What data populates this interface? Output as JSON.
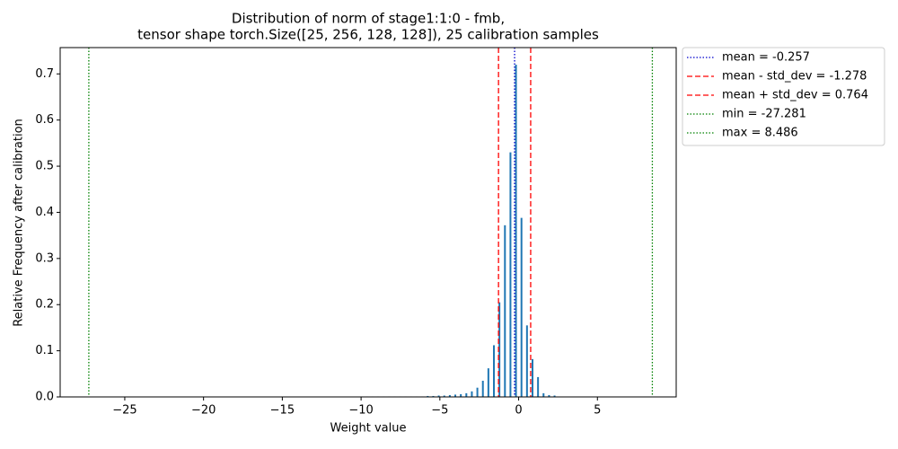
{
  "chart_data": {
    "type": "bar",
    "title": [
      "Distribution of norm of stage1:1:0 - fmb,",
      "tensor shape torch.Size([25, 256, 128, 128]), 25 calibration samples"
    ],
    "x_label": "Weight value",
    "y_label": "Relative Frequency after calibration",
    "color": "#1f77b4",
    "x": [
      -9.97,
      -9.62,
      -9.27,
      -8.92,
      -8.57,
      -8.22,
      -7.87,
      -7.52,
      -7.17,
      -6.82,
      -6.47,
      -6.12,
      -5.77,
      -5.42,
      -5.07,
      -4.72,
      -4.37,
      -4.02,
      -3.67,
      -3.32,
      -2.97,
      -2.62,
      -2.27,
      -1.92,
      -1.57,
      -1.22,
      -0.87,
      -0.52,
      -0.17,
      0.18,
      0.53,
      0.88,
      1.23,
      1.58,
      1.93,
      2.28
    ],
    "values": [
      0.001,
      0.001,
      0.001,
      0.001,
      0.001,
      0.001,
      0.001,
      0.001,
      0.001,
      0.001,
      0.001,
      0.001,
      0.002,
      0.002,
      0.003,
      0.003,
      0.004,
      0.005,
      0.006,
      0.008,
      0.012,
      0.02,
      0.035,
      0.062,
      0.112,
      0.205,
      0.372,
      0.53,
      0.72,
      0.388,
      0.155,
      0.082,
      0.043,
      0.008,
      0.004,
      0.003
    ],
    "vlines": [
      {
        "label": "mean = -0.257",
        "value": -0.257,
        "color": "#0000cc",
        "style": "dotted"
      },
      {
        "label": "mean - std_dev = -1.278",
        "value": -1.278,
        "color": "#ff0000",
        "style": "dashed"
      },
      {
        "label": "mean + std_dev = 0.764",
        "value": 0.764,
        "color": "#ff0000",
        "style": "dashed"
      },
      {
        "label": "min = -27.281",
        "value": -27.281,
        "color": "#008000",
        "style": "dotted"
      },
      {
        "label": "max = 8.486",
        "value": 8.486,
        "color": "#008000",
        "style": "dotted"
      }
    ],
    "xlim": [
      -29.1,
      10.0
    ],
    "ylim": [
      0,
      0.757
    ],
    "xticks": [
      {
        "value": -25,
        "label": "−25"
      },
      {
        "value": -20,
        "label": "−20"
      },
      {
        "value": -15,
        "label": "−15"
      },
      {
        "value": -10,
        "label": "−10"
      },
      {
        "value": -5,
        "label": "−5"
      },
      0,
      5
    ],
    "yticks": [
      {
        "value": 0,
        "label": "0.0"
      },
      0.1,
      0.2,
      0.3,
      0.4,
      0.5,
      0.6,
      0.7
    ],
    "legend": "outside-right"
  }
}
